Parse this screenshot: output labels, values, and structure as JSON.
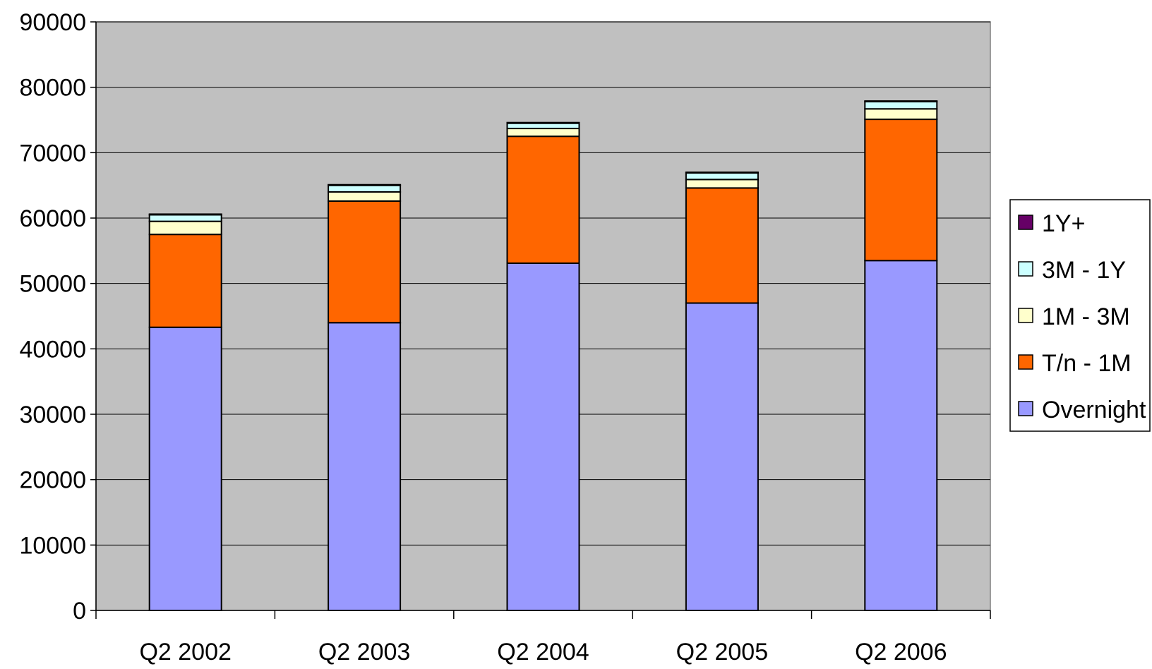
{
  "chart_data": {
    "type": "bar",
    "stacked": true,
    "categories": [
      "Q2 2002",
      "Q2 2003",
      "Q2 2004",
      "Q2 2005",
      "Q2 2006"
    ],
    "ylim": [
      0,
      90000
    ],
    "yticks": [
      0,
      10000,
      20000,
      30000,
      40000,
      50000,
      60000,
      70000,
      80000,
      90000
    ],
    "grid": true,
    "legend_position": "right",
    "plot_background": "#C0C0C0",
    "series": [
      {
        "name": "Overnight",
        "color": "#9999FF",
        "values": [
          43300,
          44000,
          53100,
          47000,
          53500
        ]
      },
      {
        "name": "T/n - 1M",
        "color": "#FF6600",
        "values": [
          14200,
          18600,
          19400,
          17600,
          21600
        ]
      },
      {
        "name": "1M - 3M",
        "color": "#FFFFCC",
        "values": [
          2000,
          1400,
          1200,
          1300,
          1600
        ]
      },
      {
        "name": "3M - 1Y",
        "color": "#CCFFFF",
        "values": [
          1000,
          1000,
          800,
          1000,
          1100
        ]
      },
      {
        "name": "1Y+",
        "color": "#660066",
        "values": [
          100,
          100,
          100,
          100,
          100
        ]
      }
    ]
  }
}
